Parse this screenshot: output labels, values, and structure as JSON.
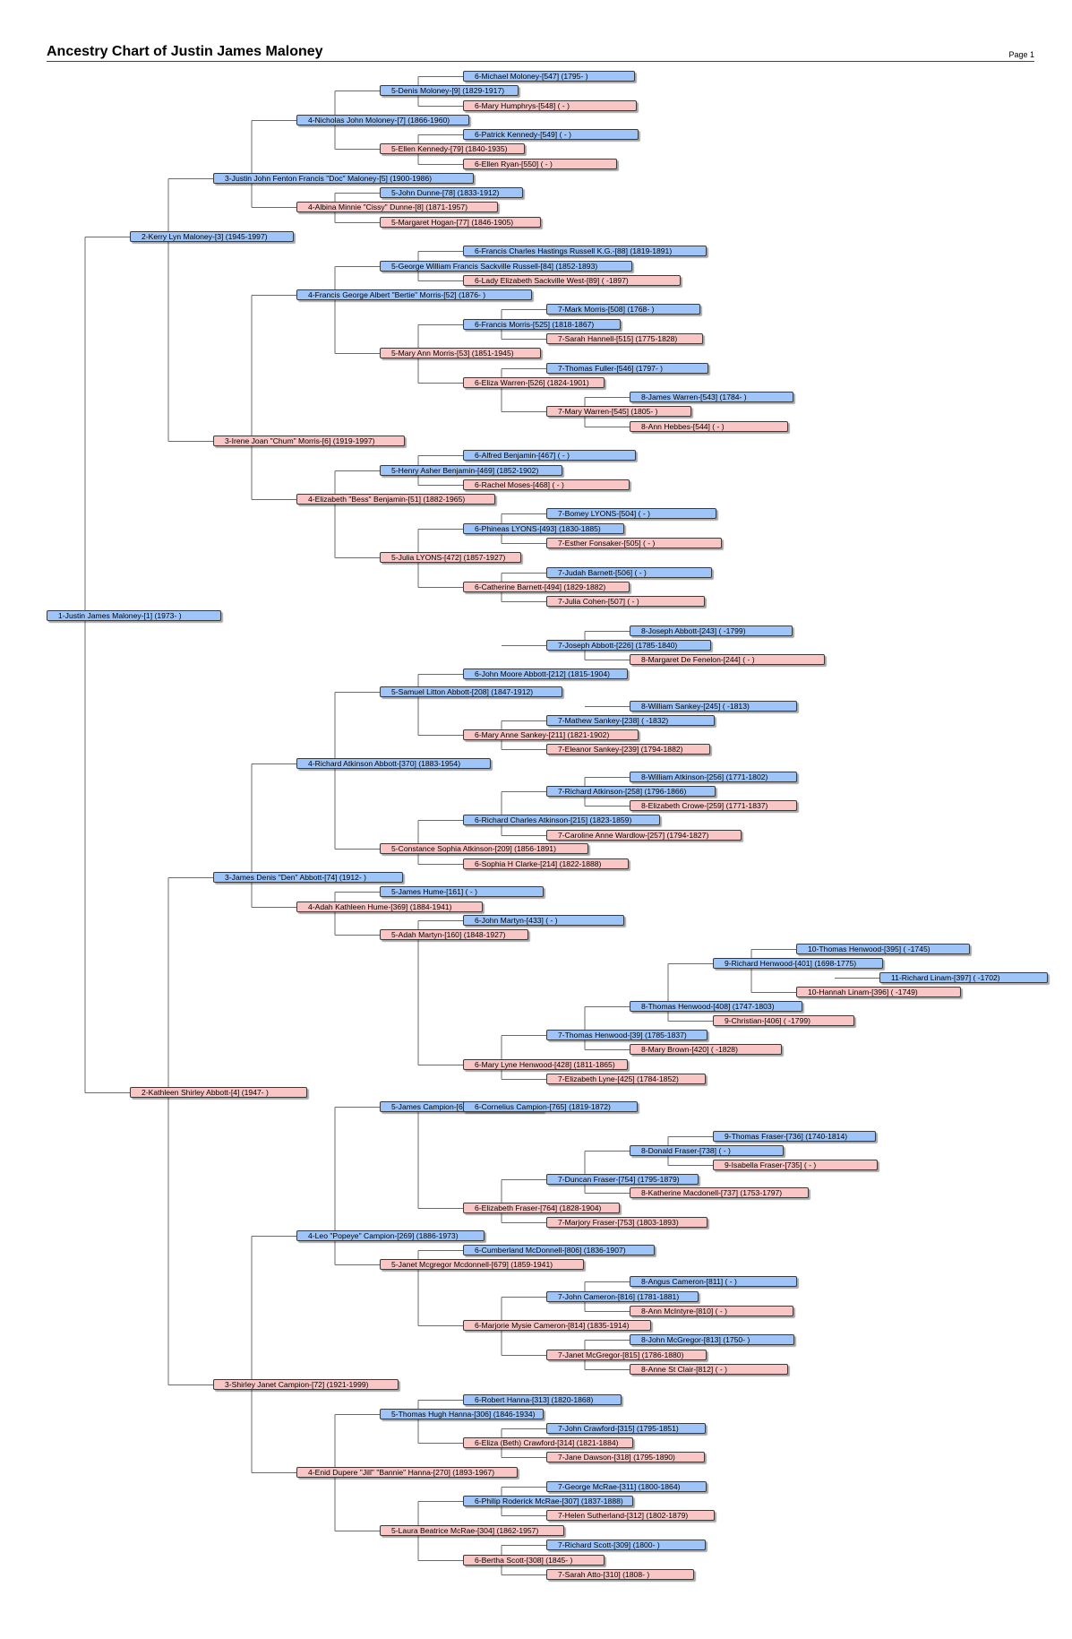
{
  "title": "Ancestry Chart of Justin James Maloney",
  "page_label": "Page 1",
  "persons": [
    {
      "id": "p1",
      "text": "1-Justin James Maloney-[1] (1973-       )",
      "sex": "m",
      "parent": null
    },
    {
      "id": "p2",
      "text": "2-Kerry Lyn Maloney-[3] (1945-1997)",
      "sex": "m",
      "parent": "p1"
    },
    {
      "id": "p3",
      "text": "3-Justin John Fenton Francis \"Doc\" Maloney-[5] (1900-1986)",
      "sex": "m",
      "parent": "p2"
    },
    {
      "id": "p4",
      "text": "4-Nicholas John Moloney-[7] (1866-1960)",
      "sex": "m",
      "parent": "p3"
    },
    {
      "id": "p5",
      "text": "5-Denis Moloney-[9] (1829-1917)",
      "sex": "m",
      "parent": "p4"
    },
    {
      "id": "p6",
      "text": "6-Michael Moloney-[547] (1795-        )",
      "sex": "m",
      "parent": "p5"
    },
    {
      "id": "p7",
      "text": "6-Mary Humphrys-[548] (           -         )",
      "sex": "f",
      "parent": "p5"
    },
    {
      "id": "p8",
      "text": "5-Ellen Kennedy-[79] (1840-1935)",
      "sex": "f",
      "parent": "p4"
    },
    {
      "id": "p9",
      "text": "6-Patrick Kennedy-[549] (           -         )",
      "sex": "m",
      "parent": "p8"
    },
    {
      "id": "p10",
      "text": "6-Ellen Ryan-[550] (           -         )",
      "sex": "f",
      "parent": "p8"
    },
    {
      "id": "p11",
      "text": "4-Albina Minnie \"Cissy\" Dunne-[8] (1871-1957)",
      "sex": "f",
      "parent": "p3"
    },
    {
      "id": "p12",
      "text": "5-John Dunne-[78] (1833-1912)",
      "sex": "m",
      "parent": "p11"
    },
    {
      "id": "p13",
      "text": "5-Margaret Hogan-[77] (1846-1905)",
      "sex": "f",
      "parent": "p11"
    },
    {
      "id": "p14",
      "text": "3-Irene Joan \"Chum\" Morris-[6] (1919-1997)",
      "sex": "f",
      "parent": "p2"
    },
    {
      "id": "p15",
      "text": "4-Francis George Albert \"Bertie\" Morris-[52] (1876-          )",
      "sex": "m",
      "parent": "p14"
    },
    {
      "id": "p16",
      "text": "5-George William Francis Sackville Russell-[84] (1852-1893)",
      "sex": "m",
      "parent": "p15"
    },
    {
      "id": "p17",
      "text": "6-Francis Charles Hastings Russell K.G.-[88] (1819-1891)",
      "sex": "m",
      "parent": "p16"
    },
    {
      "id": "p18",
      "text": "6-Lady Elizabeth Sackville West-[89] (           -1897)",
      "sex": "f",
      "parent": "p16"
    },
    {
      "id": "p19",
      "text": "5-Mary Ann Morris-[53] (1851-1945)",
      "sex": "f",
      "parent": "p15"
    },
    {
      "id": "p20",
      "text": "6-Francis Morris-[525] (1818-1867)",
      "sex": "m",
      "parent": "p19"
    },
    {
      "id": "p21",
      "text": "7-Mark Morris-[508] (1768-          )",
      "sex": "m",
      "parent": "p20"
    },
    {
      "id": "p22",
      "text": "7-Sarah Hannell-[515] (1775-1828)",
      "sex": "f",
      "parent": "p20"
    },
    {
      "id": "p23",
      "text": "6-Eliza Warren-[526] (1824-1901)",
      "sex": "f",
      "parent": "p19"
    },
    {
      "id": "p24",
      "text": "7-Thomas Fuller-[546] (1797-          )",
      "sex": "m",
      "parent": "p23"
    },
    {
      "id": "p25",
      "text": "7-Mary Warren-[545] (1805-          )",
      "sex": "f",
      "parent": "p23"
    },
    {
      "id": "p26",
      "text": "8-James Warren-[543] (1784-          )",
      "sex": "m",
      "parent": "p25"
    },
    {
      "id": "p27",
      "text": "8-Ann Hebbes-[544] (           -         )",
      "sex": "f",
      "parent": "p25"
    },
    {
      "id": "p28",
      "text": "4-Elizabeth \"Bess\" Benjamin-[51] (1882-1965)",
      "sex": "f",
      "parent": "p14"
    },
    {
      "id": "p29",
      "text": "5-Henry Asher Benjamin-[469] (1852-1902)",
      "sex": "m",
      "parent": "p28"
    },
    {
      "id": "p30",
      "text": "6-Alfred Benjamin-[467] (           -         )",
      "sex": "m",
      "parent": "p29"
    },
    {
      "id": "p31",
      "text": "6-Rachel Moses-[468] (           -         )",
      "sex": "f",
      "parent": "p29"
    },
    {
      "id": "p32",
      "text": "5-Julia LYONS-[472] (1857-1927)",
      "sex": "f",
      "parent": "p28"
    },
    {
      "id": "p33",
      "text": "6-Phineas LYONS-[493] (1830-1885)",
      "sex": "m",
      "parent": "p32"
    },
    {
      "id": "p34",
      "text": "7-Bomey LYONS-[504] (           -         )",
      "sex": "m",
      "parent": "p33"
    },
    {
      "id": "p35",
      "text": "7-Esther Fonsaker-[505] (           -         )",
      "sex": "f",
      "parent": "p33"
    },
    {
      "id": "p36",
      "text": "6-Catherine Barnett-[494] (1829-1882)",
      "sex": "f",
      "parent": "p32"
    },
    {
      "id": "p37",
      "text": "7-Judah Barnett-[506] (           -         )",
      "sex": "m",
      "parent": "p36"
    },
    {
      "id": "p38",
      "text": "7-Julia Cohen-[507] (           -         )",
      "sex": "f",
      "parent": "p36"
    },
    {
      "id": "p39",
      "text": "2-Kathleen Shirley Abbott-[4] (1947-       )",
      "sex": "f",
      "parent": "p1"
    },
    {
      "id": "p40",
      "text": "3-James Denis \"Den\" Abbott-[74] (1912-       )",
      "sex": "m",
      "parent": "p39"
    },
    {
      "id": "p41",
      "text": "4-Richard Atkinson Abbott-[370] (1883-1954)",
      "sex": "m",
      "parent": "p40"
    },
    {
      "id": "p42",
      "text": "5-Samuel Litton Abbott-[208] (1847-1912)",
      "sex": "m",
      "parent": "p41"
    },
    {
      "id": "p43",
      "text": "6-John Moore Abbott-[212] (1815-1904)",
      "sex": "m",
      "parent": "p42"
    },
    {
      "id": "p44",
      "text": "7-Joseph Abbott-[226] (1785-1840)",
      "sex": "m",
      "parent": "p43"
    },
    {
      "id": "p45",
      "text": "8-Joseph Abbott-[243] (           -1799)",
      "sex": "m",
      "parent": "p44"
    },
    {
      "id": "p46",
      "text": "8-Margaret De Fenelon-[244] (           -         )",
      "sex": "f",
      "parent": "p44"
    },
    {
      "id": "p47",
      "text": "6-Mary Anne Sankey-[211] (1821-1902)",
      "sex": "f",
      "parent": "p42"
    },
    {
      "id": "p48",
      "text": "7-Mathew Sankey-[238] (           -1832)",
      "sex": "m",
      "parent": "p47"
    },
    {
      "id": "p49",
      "text": "8-William Sankey-[245] (           -1813)",
      "sex": "m",
      "parent": "p48"
    },
    {
      "id": "p50",
      "text": "7-Eleanor Sankey-[239] (1794-1882)",
      "sex": "f",
      "parent": "p47"
    },
    {
      "id": "p51",
      "text": "5-Constance Sophia Atkinson-[209] (1856-1891)",
      "sex": "f",
      "parent": "p41"
    },
    {
      "id": "p52",
      "text": "6-Richard Charles Atkinson-[215] (1823-1859)",
      "sex": "m",
      "parent": "p51"
    },
    {
      "id": "p53",
      "text": "7-Richard Atkinson-[258] (1796-1866)",
      "sex": "m",
      "parent": "p52"
    },
    {
      "id": "p54",
      "text": "8-William Atkinson-[256] (1771-1802)",
      "sex": "m",
      "parent": "p53"
    },
    {
      "id": "p55",
      "text": "8-Elizabeth Crowe-[259] (1771-1837)",
      "sex": "f",
      "parent": "p53"
    },
    {
      "id": "p56",
      "text": "7-Caroline Anne Wardlow-[257] (1794-1827)",
      "sex": "f",
      "parent": "p52"
    },
    {
      "id": "p57",
      "text": "6-Sophia H Clarke-[214] (1822-1888)",
      "sex": "f",
      "parent": "p51"
    },
    {
      "id": "p58",
      "text": "4-Adah Kathleen Hume-[369] (1884-1941)",
      "sex": "f",
      "parent": "p40"
    },
    {
      "id": "p59",
      "text": "5-James Hume-[161] (           -         )",
      "sex": "m",
      "parent": "p58"
    },
    {
      "id": "p60",
      "text": "5-Adah Martyn-[160] (1848-1927)",
      "sex": "f",
      "parent": "p58"
    },
    {
      "id": "p61",
      "text": "6-John Martyn-[433] (           -         )",
      "sex": "m",
      "parent": "p60"
    },
    {
      "id": "p62",
      "text": "6-Mary Lyne Henwood-[428] (1811-1865)",
      "sex": "f",
      "parent": "p60"
    },
    {
      "id": "p63",
      "text": "7-Thomas Henwood-[39] (1785-1837)",
      "sex": "m",
      "parent": "p62"
    },
    {
      "id": "p64",
      "text": "8-Thomas Henwood-[408] (1747-1803)",
      "sex": "m",
      "parent": "p63"
    },
    {
      "id": "p65",
      "text": "9-Richard Henwood-[401] (1698-1775)",
      "sex": "m",
      "parent": "p64"
    },
    {
      "id": "p66",
      "text": "10-Thomas Henwood-[395] (           -1745)",
      "sex": "m",
      "parent": "p65"
    },
    {
      "id": "p67",
      "text": "10-Hannah Linam-[396] (           -1749)",
      "sex": "f",
      "parent": "p65"
    },
    {
      "id": "p68",
      "text": "11-Richard Linam-[397] (           -1702)",
      "sex": "m",
      "parent": "p67"
    },
    {
      "id": "p69",
      "text": "9-Christian-[406] (           -1799)",
      "sex": "f",
      "parent": "p64"
    },
    {
      "id": "p70",
      "text": "8-Mary Brown-[420] (           -1828)",
      "sex": "f",
      "parent": "p63"
    },
    {
      "id": "p71",
      "text": "7-Elizabeth Lyne-[425] (1784-1852)",
      "sex": "f",
      "parent": "p62"
    },
    {
      "id": "p72",
      "text": "3-Shirley Janet Campion-[72] (1921-1999)",
      "sex": "f",
      "parent": "p39"
    },
    {
      "id": "p73",
      "text": "4-Leo \"Popeye\" Campion-[269] (1886-1973)",
      "sex": "m",
      "parent": "p72"
    },
    {
      "id": "p74",
      "text": "5-James Campion-[678] (1853-1936)",
      "sex": "m",
      "parent": "p73"
    },
    {
      "id": "p75",
      "text": "6-Cornelius Campion-[765] (1819-1872)",
      "sex": "m",
      "parent": "p74"
    },
    {
      "id": "p76",
      "text": "6-Elizabeth Fraser-[764] (1828-1904)",
      "sex": "f",
      "parent": "p74"
    },
    {
      "id": "p77",
      "text": "7-Duncan Fraser-[754] (1795-1879)",
      "sex": "m",
      "parent": "p76"
    },
    {
      "id": "p78",
      "text": "8-Donald Fraser-[738] (           -         )",
      "sex": "m",
      "parent": "p77"
    },
    {
      "id": "p79",
      "text": "9-Thomas Fraser-[736] (1740-1814)",
      "sex": "m",
      "parent": "p78"
    },
    {
      "id": "p80",
      "text": "9-Isabella Fraser-[735] (           -         )",
      "sex": "f",
      "parent": "p78"
    },
    {
      "id": "p81",
      "text": "8-Katherine Macdonell-[737] (1753-1797)",
      "sex": "f",
      "parent": "p77"
    },
    {
      "id": "p82",
      "text": "7-Marjory Fraser-[753] (1803-1893)",
      "sex": "f",
      "parent": "p76"
    },
    {
      "id": "p83",
      "text": "5-Janet Mcgregor Mcdonnell-[679] (1859-1941)",
      "sex": "f",
      "parent": "p73"
    },
    {
      "id": "p84",
      "text": "6-Cumberland McDonnell-[806] (1836-1907)",
      "sex": "m",
      "parent": "p83"
    },
    {
      "id": "p85",
      "text": "6-Marjorie Mysie Cameron-[814] (1835-1914)",
      "sex": "f",
      "parent": "p83"
    },
    {
      "id": "p86",
      "text": "7-John Cameron-[816] (1781-1881)",
      "sex": "m",
      "parent": "p85"
    },
    {
      "id": "p87",
      "text": "8-Angus Cameron-[811] (           -         )",
      "sex": "m",
      "parent": "p86"
    },
    {
      "id": "p88",
      "text": "8-Ann McIntyre-[810] (           -         )",
      "sex": "f",
      "parent": "p86"
    },
    {
      "id": "p89",
      "text": "7-Janet McGregor-[815] (1786-1880)",
      "sex": "f",
      "parent": "p85"
    },
    {
      "id": "p90",
      "text": "8-John McGregor-[813] (1750-          )",
      "sex": "m",
      "parent": "p89"
    },
    {
      "id": "p91",
      "text": "8-Anne St Clair-[812] (           -         )",
      "sex": "f",
      "parent": "p89"
    },
    {
      "id": "p92",
      "text": "4-Enid Dupere \"Jill\" \"Bannie\" Hanna-[270] (1893-1967)",
      "sex": "f",
      "parent": "p72"
    },
    {
      "id": "p93",
      "text": "5-Thomas Hugh Hanna-[306] (1846-1934)",
      "sex": "m",
      "parent": "p92"
    },
    {
      "id": "p94",
      "text": "6-Robert Hanna-[313] (1820-1868)",
      "sex": "m",
      "parent": "p93"
    },
    {
      "id": "p95",
      "text": "6-Eliza (Beth) Crawford-[314] (1821-1884)",
      "sex": "f",
      "parent": "p93"
    },
    {
      "id": "p96",
      "text": "7-John Crawford-[315] (1795-1851)",
      "sex": "m",
      "parent": "p95"
    },
    {
      "id": "p97",
      "text": "7-Jane Dawson-[318] (1795-1890)",
      "sex": "f",
      "parent": "p95"
    },
    {
      "id": "p98",
      "text": "5-Laura Beatrice McRae-[304] (1862-1957)",
      "sex": "f",
      "parent": "p92"
    },
    {
      "id": "p99",
      "text": "6-Philip Roderick McRae-[307] (1837-1888)",
      "sex": "m",
      "parent": "p98"
    },
    {
      "id": "p100",
      "text": "7-George McRae-[311] (1800-1864)",
      "sex": "m",
      "parent": "p99"
    },
    {
      "id": "p101",
      "text": "7-Helen Sutherland-[312] (1802-1879)",
      "sex": "f",
      "parent": "p99"
    },
    {
      "id": "p102",
      "text": "6-Bertha Scott-[308] (1845-          )",
      "sex": "f",
      "parent": "p98"
    },
    {
      "id": "p103",
      "text": "7-Richard Scott-[309] (1800-          )",
      "sex": "m",
      "parent": "p102"
    },
    {
      "id": "p104",
      "text": "7-Sarah Atto-[310] (1808-          )",
      "sex": "f",
      "parent": "p102"
    }
  ]
}
